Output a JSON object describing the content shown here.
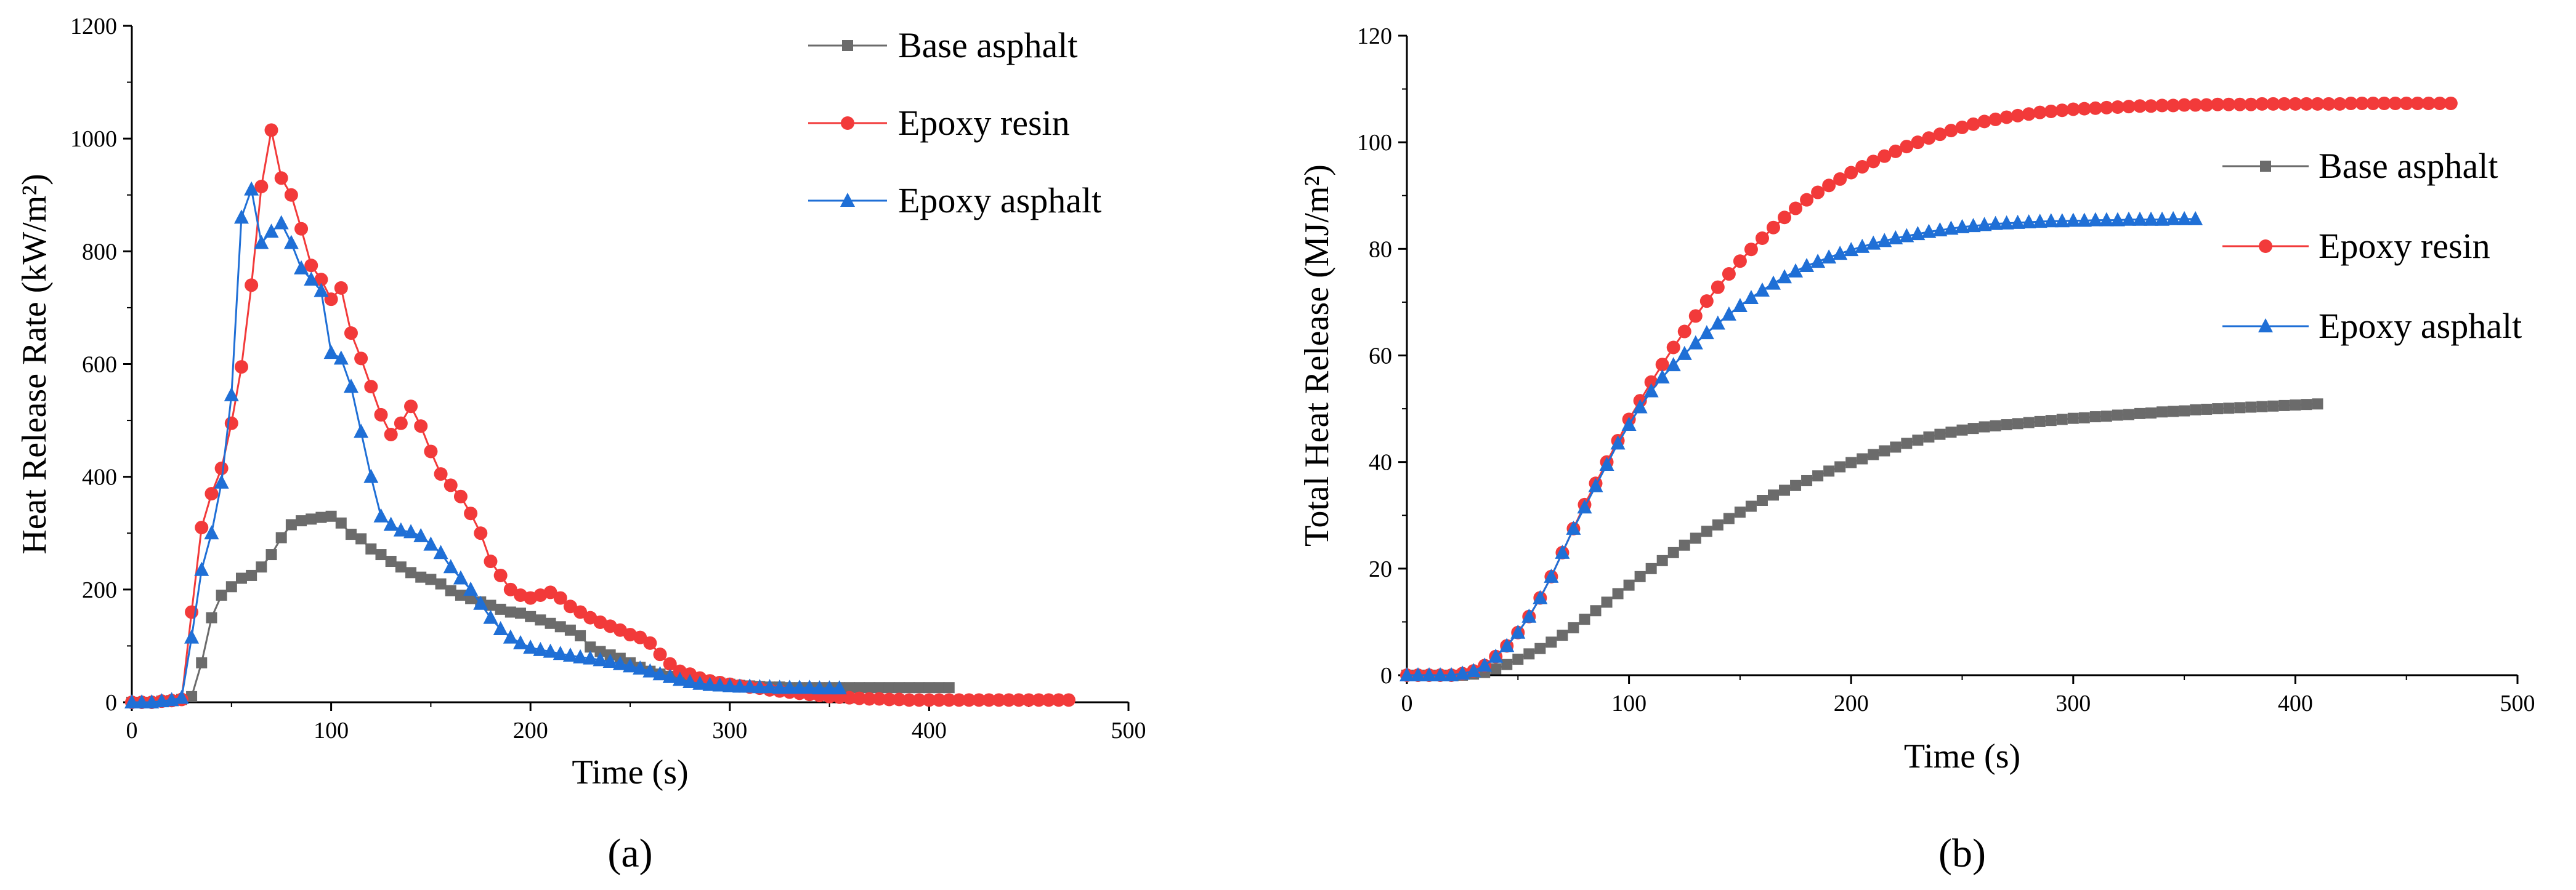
{
  "chart_data": [
    {
      "type": "line",
      "panel_label": "(a)",
      "xlabel": "Time (s)",
      "ylabel": "Heat Release Rate (kW/m²)",
      "xlim": [
        0,
        500
      ],
      "ylim": [
        0,
        1200
      ],
      "xticks": [
        0,
        100,
        200,
        300,
        400,
        500
      ],
      "yticks": [
        0,
        200,
        400,
        600,
        800,
        1000,
        1200
      ],
      "grid": false,
      "legend_position": "top-right",
      "series": [
        {
          "name": "Base asphalt",
          "color": "#6b6b6b",
          "marker": "square",
          "x": [
            0,
            5,
            10,
            15,
            20,
            25,
            30,
            35,
            40,
            45,
            50,
            55,
            60,
            65,
            70,
            75,
            80,
            85,
            90,
            95,
            100,
            105,
            110,
            115,
            120,
            125,
            130,
            135,
            140,
            145,
            150,
            155,
            160,
            165,
            170,
            175,
            180,
            185,
            190,
            195,
            200,
            205,
            210,
            215,
            220,
            225,
            230,
            235,
            240,
            245,
            250,
            255,
            260,
            265,
            270,
            275,
            280,
            285,
            290,
            295,
            300,
            305,
            310,
            315,
            320,
            325,
            330,
            335,
            340,
            345,
            350,
            355,
            360,
            365,
            370,
            375,
            380,
            385,
            390,
            395,
            400,
            405,
            410
          ],
          "y": [
            0,
            0,
            0,
            2,
            3,
            5,
            10,
            70,
            150,
            190,
            205,
            220,
            225,
            240,
            262,
            292,
            315,
            322,
            325,
            328,
            330,
            318,
            298,
            290,
            272,
            262,
            250,
            240,
            230,
            222,
            218,
            210,
            198,
            190,
            184,
            178,
            172,
            165,
            160,
            158,
            152,
            146,
            140,
            134,
            128,
            118,
            98,
            90,
            84,
            78,
            70,
            62,
            55,
            50,
            46,
            44,
            42,
            40,
            37,
            34,
            32,
            30,
            29,
            28,
            27,
            27,
            26,
            26,
            26,
            26,
            26,
            26,
            26,
            26,
            26,
            26,
            26,
            26,
            26,
            26,
            26,
            26,
            26
          ]
        },
        {
          "name": "Epoxy resin",
          "color": "#f23a3a",
          "marker": "circle",
          "x": [
            0,
            5,
            10,
            15,
            20,
            25,
            30,
            35,
            40,
            45,
            50,
            55,
            60,
            65,
            70,
            75,
            80,
            85,
            90,
            95,
            100,
            105,
            110,
            115,
            120,
            125,
            130,
            135,
            140,
            145,
            150,
            155,
            160,
            165,
            170,
            175,
            180,
            185,
            190,
            195,
            200,
            205,
            210,
            215,
            220,
            225,
            230,
            235,
            240,
            245,
            250,
            255,
            260,
            265,
            270,
            275,
            280,
            285,
            290,
            295,
            300,
            305,
            310,
            315,
            320,
            325,
            330,
            335,
            340,
            345,
            350,
            355,
            360,
            365,
            370,
            375,
            380,
            385,
            390,
            395,
            400,
            405,
            410,
            415,
            420,
            425,
            430,
            435,
            440,
            445,
            450,
            455,
            460,
            465,
            470
          ],
          "y": [
            0,
            0,
            0,
            2,
            3,
            5,
            160,
            310,
            370,
            415,
            495,
            595,
            740,
            915,
            1015,
            930,
            900,
            840,
            775,
            750,
            715,
            735,
            655,
            610,
            560,
            510,
            475,
            495,
            525,
            490,
            445,
            405,
            385,
            365,
            335,
            300,
            250,
            225,
            200,
            190,
            185,
            190,
            195,
            185,
            170,
            160,
            150,
            142,
            135,
            128,
            120,
            115,
            105,
            85,
            68,
            55,
            50,
            43,
            38,
            35,
            32,
            29,
            27,
            25,
            22,
            20,
            18,
            16,
            14,
            12,
            10,
            9,
            8,
            7,
            6,
            6,
            5,
            5,
            4,
            4,
            4,
            4,
            4,
            4,
            4,
            4,
            4,
            4,
            4,
            4,
            4,
            4,
            4,
            4,
            4
          ]
        },
        {
          "name": "Epoxy asphalt",
          "color": "#1f6fd6",
          "marker": "triangle",
          "x": [
            0,
            5,
            10,
            15,
            20,
            25,
            30,
            35,
            40,
            45,
            50,
            55,
            60,
            65,
            70,
            75,
            80,
            85,
            90,
            95,
            100,
            105,
            110,
            115,
            120,
            125,
            130,
            135,
            140,
            145,
            150,
            155,
            160,
            165,
            170,
            175,
            180,
            185,
            190,
            195,
            200,
            205,
            210,
            215,
            220,
            225,
            230,
            235,
            240,
            245,
            250,
            255,
            260,
            265,
            270,
            275,
            280,
            285,
            290,
            295,
            300,
            305,
            310,
            315,
            320,
            325,
            330,
            335,
            340,
            345,
            350,
            355
          ],
          "y": [
            0,
            0,
            0,
            2,
            4,
            8,
            115,
            235,
            300,
            390,
            545,
            860,
            910,
            815,
            835,
            850,
            815,
            770,
            750,
            730,
            620,
            610,
            560,
            480,
            400,
            330,
            315,
            305,
            302,
            295,
            280,
            265,
            240,
            220,
            200,
            175,
            150,
            130,
            115,
            105,
            97,
            93,
            90,
            86,
            83,
            80,
            78,
            75,
            72,
            68,
            64,
            60,
            55,
            50,
            45,
            40,
            36,
            33,
            31,
            30,
            29,
            28,
            28,
            27,
            27,
            26,
            26,
            26,
            26,
            25,
            25,
            25
          ]
        }
      ]
    },
    {
      "type": "line",
      "panel_label": "(b)",
      "xlabel": "Time (s)",
      "ylabel": "Total Heat Release (MJ/m²)",
      "xlim": [
        0,
        500
      ],
      "ylim": [
        0,
        120
      ],
      "xticks": [
        0,
        100,
        200,
        300,
        400,
        500
      ],
      "yticks": [
        0,
        20,
        40,
        60,
        80,
        100,
        120
      ],
      "grid": false,
      "legend_position": "right",
      "series": [
        {
          "name": "Base asphalt",
          "color": "#6b6b6b",
          "marker": "square",
          "x": [
            0,
            5,
            10,
            15,
            20,
            25,
            30,
            35,
            40,
            45,
            50,
            55,
            60,
            65,
            70,
            75,
            80,
            85,
            90,
            95,
            100,
            105,
            110,
            115,
            120,
            125,
            130,
            135,
            140,
            145,
            150,
            155,
            160,
            165,
            170,
            175,
            180,
            185,
            190,
            195,
            200,
            205,
            210,
            215,
            220,
            225,
            230,
            235,
            240,
            245,
            250,
            255,
            260,
            265,
            270,
            275,
            280,
            285,
            290,
            295,
            300,
            305,
            310,
            315,
            320,
            325,
            330,
            335,
            340,
            345,
            350,
            355,
            360,
            365,
            370,
            375,
            380,
            385,
            390,
            395,
            400,
            405,
            410
          ],
          "y": [
            0,
            0,
            0,
            0,
            0,
            0,
            0.2,
            0.5,
            1.2,
            2.0,
            3.0,
            4.0,
            5.0,
            6.2,
            7.5,
            8.9,
            10.5,
            12.1,
            13.7,
            15.3,
            16.9,
            18.5,
            20.0,
            21.5,
            23.0,
            24.4,
            25.7,
            27.0,
            28.2,
            29.4,
            30.6,
            31.7,
            32.8,
            33.8,
            34.7,
            35.6,
            36.5,
            37.4,
            38.3,
            39.1,
            39.9,
            40.6,
            41.4,
            42.1,
            42.8,
            43.5,
            44.1,
            44.7,
            45.2,
            45.6,
            46.0,
            46.3,
            46.6,
            46.8,
            47.0,
            47.2,
            47.4,
            47.6,
            47.8,
            48.0,
            48.2,
            48.3,
            48.5,
            48.6,
            48.8,
            48.9,
            49.1,
            49.2,
            49.4,
            49.5,
            49.6,
            49.8,
            49.9,
            50.0,
            50.1,
            50.2,
            50.3,
            50.4,
            50.5,
            50.6,
            50.7,
            50.8,
            50.9
          ]
        },
        {
          "name": "Epoxy resin",
          "color": "#f23a3a",
          "marker": "circle",
          "x": [
            0,
            5,
            10,
            15,
            20,
            25,
            30,
            35,
            40,
            45,
            50,
            55,
            60,
            65,
            70,
            75,
            80,
            85,
            90,
            95,
            100,
            105,
            110,
            115,
            120,
            125,
            130,
            135,
            140,
            145,
            150,
            155,
            160,
            165,
            170,
            175,
            180,
            185,
            190,
            195,
            200,
            205,
            210,
            215,
            220,
            225,
            230,
            235,
            240,
            245,
            250,
            255,
            260,
            265,
            270,
            275,
            280,
            285,
            290,
            295,
            300,
            305,
            310,
            315,
            320,
            325,
            330,
            335,
            340,
            345,
            350,
            355,
            360,
            365,
            370,
            375,
            380,
            385,
            390,
            395,
            400,
            405,
            410,
            415,
            420,
            425,
            430,
            435,
            440,
            445,
            450,
            455,
            460,
            465,
            470
          ],
          "y": [
            0,
            0,
            0,
            0,
            0,
            0.3,
            0.8,
            1.8,
            3.5,
            5.5,
            8.0,
            11.0,
            14.5,
            18.5,
            23.0,
            27.5,
            32.0,
            36.0,
            40.0,
            44.0,
            48.0,
            51.5,
            55.0,
            58.3,
            61.5,
            64.5,
            67.4,
            70.2,
            72.8,
            75.3,
            77.7,
            79.9,
            82.0,
            84.0,
            85.9,
            87.6,
            89.2,
            90.6,
            91.9,
            93.1,
            94.3,
            95.4,
            96.4,
            97.4,
            98.3,
            99.2,
            100.0,
            100.8,
            101.5,
            102.2,
            102.8,
            103.4,
            103.9,
            104.3,
            104.7,
            105.0,
            105.3,
            105.6,
            105.8,
            106.0,
            106.2,
            106.3,
            106.4,
            106.5,
            106.6,
            106.7,
            106.8,
            106.8,
            106.9,
            106.9,
            107.0,
            107.0,
            107.0,
            107.1,
            107.1,
            107.1,
            107.1,
            107.2,
            107.2,
            107.2,
            107.2,
            107.2,
            107.2,
            107.2,
            107.2,
            107.3,
            107.3,
            107.3,
            107.3,
            107.3,
            107.3,
            107.3,
            107.3,
            107.3,
            107.3
          ]
        },
        {
          "name": "Epoxy asphalt",
          "color": "#1f6fd6",
          "marker": "triangle",
          "x": [
            0,
            5,
            10,
            15,
            20,
            25,
            30,
            35,
            40,
            45,
            50,
            55,
            60,
            65,
            70,
            75,
            80,
            85,
            90,
            95,
            100,
            105,
            110,
            115,
            120,
            125,
            130,
            135,
            140,
            145,
            150,
            155,
            160,
            165,
            170,
            175,
            180,
            185,
            190,
            195,
            200,
            205,
            210,
            215,
            220,
            225,
            230,
            235,
            240,
            245,
            250,
            255,
            260,
            265,
            270,
            275,
            280,
            285,
            290,
            295,
            300,
            305,
            310,
            315,
            320,
            325,
            330,
            335,
            340,
            345,
            350,
            355
          ],
          "y": [
            0,
            0,
            0,
            0,
            0,
            0.3,
            0.8,
            1.8,
            3.5,
            5.5,
            8.0,
            11.0,
            14.5,
            18.5,
            23.0,
            27.5,
            31.5,
            35.5,
            39.5,
            43.5,
            47.0,
            50.3,
            53.3,
            55.9,
            58.2,
            60.3,
            62.3,
            64.2,
            66.0,
            67.7,
            69.3,
            70.8,
            72.2,
            73.5,
            74.7,
            75.8,
            76.8,
            77.6,
            78.4,
            79.1,
            79.8,
            80.4,
            81.0,
            81.5,
            82.0,
            82.4,
            82.8,
            83.2,
            83.5,
            83.8,
            84.1,
            84.3,
            84.5,
            84.7,
            84.8,
            84.9,
            85.0,
            85.1,
            85.2,
            85.2,
            85.3,
            85.3,
            85.4,
            85.4,
            85.4,
            85.5,
            85.5,
            85.5,
            85.5,
            85.6,
            85.6,
            85.6
          ]
        }
      ]
    }
  ]
}
